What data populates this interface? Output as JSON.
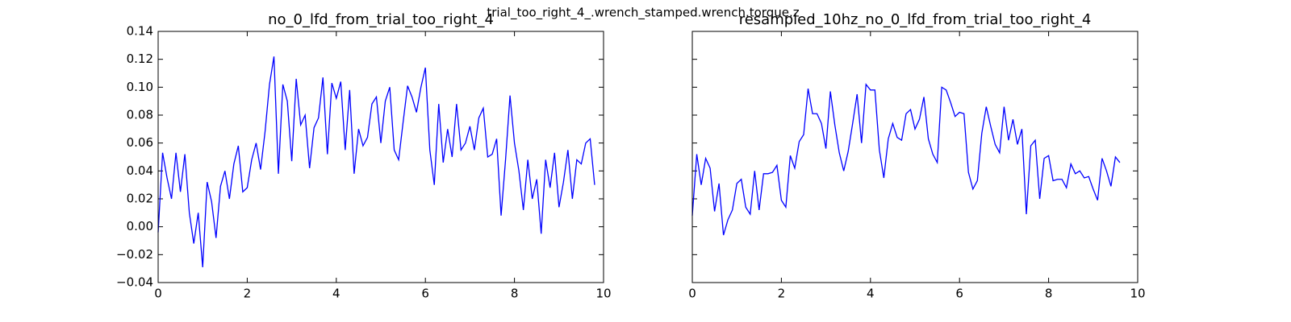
{
  "title": "trial_too_right_4_.wrench_stamped.wrench.torque.z",
  "chart_data": [
    {
      "type": "line",
      "title": "no_0_lfd_from_trial_too_right_4",
      "x": [
        0,
        0.1,
        0.2,
        0.3,
        0.4,
        0.5,
        0.6,
        0.7,
        0.8,
        0.9,
        1.0,
        1.1,
        1.2,
        1.3,
        1.4,
        1.5,
        1.6,
        1.7,
        1.8,
        1.9,
        2.0,
        2.1,
        2.2,
        2.3,
        2.4,
        2.5,
        2.6,
        2.7,
        2.8,
        2.9,
        3.0,
        3.1,
        3.2,
        3.3,
        3.4,
        3.5,
        3.6,
        3.7,
        3.8,
        3.9,
        4.0,
        4.1,
        4.2,
        4.3,
        4.4,
        4.5,
        4.6,
        4.7,
        4.8,
        4.9,
        5.0,
        5.1,
        5.2,
        5.3,
        5.4,
        5.5,
        5.6,
        5.7,
        5.8,
        5.9,
        6.0,
        6.1,
        6.2,
        6.3,
        6.4,
        6.5,
        6.6,
        6.7,
        6.8,
        6.9,
        7.0,
        7.1,
        7.2,
        7.3,
        7.4,
        7.5,
        7.6,
        7.7,
        7.8,
        7.9,
        8.0,
        8.1,
        8.2,
        8.3,
        8.4,
        8.5,
        8.6,
        8.7,
        8.8,
        8.9,
        9.0,
        9.1,
        9.2,
        9.3,
        9.4,
        9.5,
        9.6,
        9.7,
        9.8
      ],
      "series": [
        {
          "color": "#0000ff",
          "values": [
            -0.004,
            0.053,
            0.035,
            0.02,
            0.053,
            0.025,
            0.052,
            0.01,
            -0.012,
            0.01,
            -0.029,
            0.032,
            0.018,
            -0.008,
            0.029,
            0.04,
            0.02,
            0.045,
            0.058,
            0.025,
            0.028,
            0.048,
            0.06,
            0.041,
            0.068,
            0.102,
            0.122,
            0.038,
            0.102,
            0.09,
            0.047,
            0.106,
            0.073,
            0.08,
            0.042,
            0.071,
            0.078,
            0.107,
            0.052,
            0.103,
            0.092,
            0.104,
            0.055,
            0.098,
            0.038,
            0.07,
            0.058,
            0.064,
            0.088,
            0.093,
            0.06,
            0.09,
            0.1,
            0.055,
            0.048,
            0.075,
            0.101,
            0.093,
            0.082,
            0.1,
            0.114,
            0.055,
            0.03,
            0.088,
            0.046,
            0.07,
            0.05,
            0.088,
            0.055,
            0.06,
            0.072,
            0.055,
            0.078,
            0.085,
            0.05,
            0.052,
            0.063,
            0.008,
            0.048,
            0.094,
            0.06,
            0.04,
            0.012,
            0.048,
            0.02,
            0.034,
            -0.005,
            0.048,
            0.028,
            0.053,
            0.014,
            0.032,
            0.055,
            0.02,
            0.048,
            0.045,
            0.06,
            0.063,
            0.03
          ]
        }
      ],
      "xlim": [
        0,
        10
      ],
      "xticks": [
        0,
        2,
        4,
        6,
        8,
        10
      ],
      "ylim": [
        -0.04,
        0.14
      ],
      "yticks": [
        {
          "value": -0.04,
          "label": "−0.04"
        },
        {
          "value": -0.02,
          "label": "−0.02"
        },
        {
          "value": 0,
          "label": "0.00"
        },
        0.02,
        0.04,
        0.06,
        0.08,
        {
          "value": 0.1,
          "label": "0.10"
        },
        0.12,
        0.14
      ],
      "sharey": false
    },
    {
      "type": "line",
      "title": "resampled_10hz_no_0_lfd_from_trial_too_right_4",
      "x": [
        0,
        0.1,
        0.2,
        0.3,
        0.4,
        0.5,
        0.6,
        0.7,
        0.8,
        0.9,
        1.0,
        1.1,
        1.2,
        1.3,
        1.4,
        1.5,
        1.6,
        1.7,
        1.8,
        1.9,
        2.0,
        2.1,
        2.2,
        2.3,
        2.4,
        2.5,
        2.6,
        2.7,
        2.8,
        2.9,
        3.0,
        3.1,
        3.2,
        3.3,
        3.4,
        3.5,
        3.6,
        3.7,
        3.8,
        3.9,
        4.0,
        4.1,
        4.2,
        4.3,
        4.4,
        4.5,
        4.6,
        4.7,
        4.8,
        4.9,
        5.0,
        5.1,
        5.2,
        5.3,
        5.4,
        5.5,
        5.6,
        5.7,
        5.8,
        5.9,
        6.0,
        6.1,
        6.2,
        6.3,
        6.4,
        6.5,
        6.6,
        6.7,
        6.8,
        6.9,
        7.0,
        7.1,
        7.2,
        7.3,
        7.4,
        7.5,
        7.6,
        7.7,
        7.8,
        7.9,
        8.0,
        8.1,
        8.2,
        8.3,
        8.4,
        8.5,
        8.6,
        8.7,
        8.8,
        8.9,
        9.0,
        9.1,
        9.2,
        9.3,
        9.4,
        9.5,
        9.6
      ],
      "series": [
        {
          "color": "#0000ff",
          "values": [
            0.008,
            0.052,
            0.03,
            0.049,
            0.042,
            0.011,
            0.031,
            -0.006,
            0.005,
            0.012,
            0.031,
            0.034,
            0.014,
            0.009,
            0.04,
            0.012,
            0.038,
            0.038,
            0.039,
            0.044,
            0.019,
            0.014,
            0.051,
            0.042,
            0.061,
            0.066,
            0.099,
            0.081,
            0.081,
            0.074,
            0.056,
            0.097,
            0.073,
            0.053,
            0.04,
            0.054,
            0.074,
            0.095,
            0.06,
            0.102,
            0.098,
            0.098,
            0.055,
            0.035,
            0.063,
            0.074,
            0.064,
            0.062,
            0.081,
            0.084,
            0.07,
            0.077,
            0.093,
            0.063,
            0.052,
            0.046,
            0.1,
            0.098,
            0.089,
            0.079,
            0.082,
            0.081,
            0.039,
            0.027,
            0.033,
            0.067,
            0.086,
            0.072,
            0.059,
            0.053,
            0.086,
            0.062,
            0.077,
            0.059,
            0.07,
            0.009,
            0.058,
            0.062,
            0.02,
            0.049,
            0.051,
            0.033,
            0.034,
            0.034,
            0.028,
            0.045,
            0.038,
            0.04,
            0.035,
            0.036,
            0.027,
            0.019,
            0.049,
            0.04,
            0.029,
            0.05,
            0.046
          ]
        }
      ],
      "xlim": [
        0,
        10
      ],
      "xticks": [
        0,
        2,
        4,
        6,
        8,
        10
      ],
      "ylim": [
        -0.04,
        0.14
      ],
      "yticks": [
        {
          "value": -0.04,
          "label": "−0.04"
        },
        {
          "value": -0.02,
          "label": "−0.02"
        },
        {
          "value": 0,
          "label": "0.00"
        },
        0.02,
        0.04,
        0.06,
        0.08,
        {
          "value": 0.1,
          "label": "0.10"
        },
        0.12,
        0.14
      ],
      "sharey": true
    }
  ]
}
